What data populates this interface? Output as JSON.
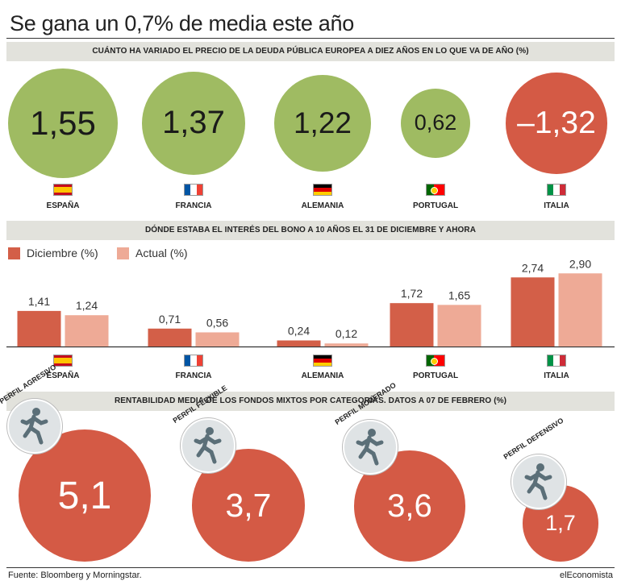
{
  "title": "Se gana un 0,7% de media este año",
  "section1_title": "CUÁNTO HA VARIADO EL PRECIO DE LA DEUDA PÚBLICA EUROPEA A DIEZ AÑOS EN LO QUE VA DE AÑO (%)",
  "section2_title": "DÓNDE ESTABA EL INTERÉS DEL BONO A 10 AÑOS EL 31 DE DICIEMBRE Y AHORA",
  "section3_title": "RENTABILIDAD MEDIA DE LOS FONDOS MIXTOS POR CATEGORÍAS. DATOS A 07 DE FEBRERO (%)",
  "colors": {
    "positive": "#9fbb62",
    "negative": "#d45a45",
    "diciembre": "#d35f48",
    "actual": "#eeaa96",
    "band": "#e2e2dc"
  },
  "countries": [
    "ESPAÑA",
    "FRANCIA",
    "ALEMANIA",
    "PORTUGAL",
    "ITALIA"
  ],
  "flag_icons": [
    "flag-spain-icon",
    "flag-france-icon",
    "flag-germany-icon",
    "flag-portugal-icon",
    "flag-italy-icon"
  ],
  "chart_data": [
    {
      "type": "bubble",
      "title": "CUÁNTO HA VARIADO EL PRECIO DE LA DEUDA PÚBLICA EUROPEA A DIEZ AÑOS EN LO QUE VA DE AÑO (%)",
      "categories": [
        "ESPAÑA",
        "FRANCIA",
        "ALEMANIA",
        "PORTUGAL",
        "ITALIA"
      ],
      "values": [
        1.55,
        1.37,
        1.22,
        0.62,
        -1.32
      ],
      "labels": [
        "1,55",
        "1,37",
        "1,22",
        "0,62",
        "–1,32"
      ]
    },
    {
      "type": "bar",
      "title": "DÓNDE ESTABA EL INTERÉS DEL BONO A 10 AÑOS EL 31 DE DICIEMBRE Y AHORA",
      "categories": [
        "ESPAÑA",
        "FRANCIA",
        "ALEMANIA",
        "PORTUGAL",
        "ITALIA"
      ],
      "series": [
        {
          "name": "Diciembre (%)",
          "values": [
            1.41,
            0.71,
            0.24,
            1.72,
            2.74
          ],
          "labels": [
            "1,41",
            "0,71",
            "0,24",
            "1,72",
            "2,74"
          ]
        },
        {
          "name": "Actual (%)",
          "values": [
            1.24,
            0.56,
            0.12,
            1.65,
            2.9
          ],
          "labels": [
            "1,24",
            "0,56",
            "0,12",
            "1,65",
            "2,90"
          ]
        }
      ],
      "legend": "top-left",
      "ylim": [
        0,
        3.1
      ]
    },
    {
      "type": "bubble",
      "title": "RENTABILIDAD MEDIA DE LOS FONDOS MIXTOS POR CATEGORÍAS. DATOS A 07 DE FEBRERO (%)",
      "categories": [
        "PERFIL AGRESIVO",
        "PERFIL FLEXIBLE",
        "PERFIL MODERADO",
        "PERFIL DEFENSIVO"
      ],
      "values": [
        5.1,
        3.7,
        3.6,
        1.7
      ],
      "labels": [
        "5,1",
        "3,7",
        "3,6",
        "1,7"
      ]
    }
  ],
  "footer": {
    "source": "Fuente: Bloomberg y  Morningstar.",
    "brand": "elEconomista"
  }
}
